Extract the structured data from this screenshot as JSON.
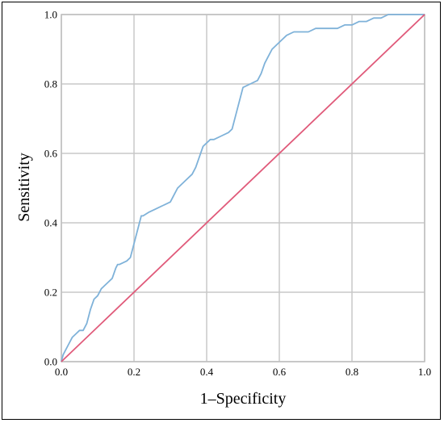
{
  "chart_data": {
    "type": "line",
    "xlabel": "1–Specificity",
    "ylabel": "Sensitivity",
    "xlim": [
      0,
      1
    ],
    "ylim": [
      0,
      1
    ],
    "grid": true,
    "x_ticks": [
      "0.0",
      "0.2",
      "0.4",
      "0.6",
      "0.8",
      "1.0"
    ],
    "y_ticks": [
      "0.0",
      "0.2",
      "0.4",
      "0.6",
      "0.8",
      "1.0"
    ],
    "series": [
      {
        "color": "#7fb2d9",
        "x": [
          0.0,
          0.005,
          0.01,
          0.02,
          0.03,
          0.04,
          0.05,
          0.06,
          0.07,
          0.08,
          0.09,
          0.1,
          0.11,
          0.12,
          0.13,
          0.14,
          0.15,
          0.155,
          0.16,
          0.18,
          0.19,
          0.2,
          0.21,
          0.22,
          0.225,
          0.24,
          0.26,
          0.28,
          0.3,
          0.31,
          0.32,
          0.34,
          0.36,
          0.37,
          0.38,
          0.39,
          0.4,
          0.41,
          0.42,
          0.44,
          0.46,
          0.47,
          0.48,
          0.49,
          0.5,
          0.52,
          0.54,
          0.55,
          0.56,
          0.57,
          0.58,
          0.6,
          0.62,
          0.64,
          0.66,
          0.68,
          0.7,
          0.72,
          0.74,
          0.76,
          0.78,
          0.8,
          0.82,
          0.84,
          0.86,
          0.88,
          0.9,
          0.92,
          0.94,
          0.96,
          1.0
        ],
        "y": [
          0.0,
          0.02,
          0.03,
          0.05,
          0.07,
          0.08,
          0.09,
          0.09,
          0.11,
          0.15,
          0.18,
          0.19,
          0.21,
          0.22,
          0.23,
          0.24,
          0.27,
          0.28,
          0.28,
          0.29,
          0.3,
          0.34,
          0.38,
          0.42,
          0.42,
          0.43,
          0.44,
          0.45,
          0.46,
          0.48,
          0.5,
          0.52,
          0.54,
          0.56,
          0.59,
          0.62,
          0.63,
          0.64,
          0.64,
          0.65,
          0.66,
          0.67,
          0.71,
          0.75,
          0.79,
          0.8,
          0.81,
          0.83,
          0.86,
          0.88,
          0.9,
          0.92,
          0.94,
          0.95,
          0.95,
          0.95,
          0.96,
          0.96,
          0.96,
          0.96,
          0.97,
          0.97,
          0.98,
          0.98,
          0.99,
          0.99,
          1.0,
          1.0,
          1.0,
          1.0,
          1.0
        ]
      },
      {
        "color": "#e05a7a",
        "x": [
          0,
          1
        ],
        "y": [
          0,
          1
        ]
      }
    ]
  }
}
